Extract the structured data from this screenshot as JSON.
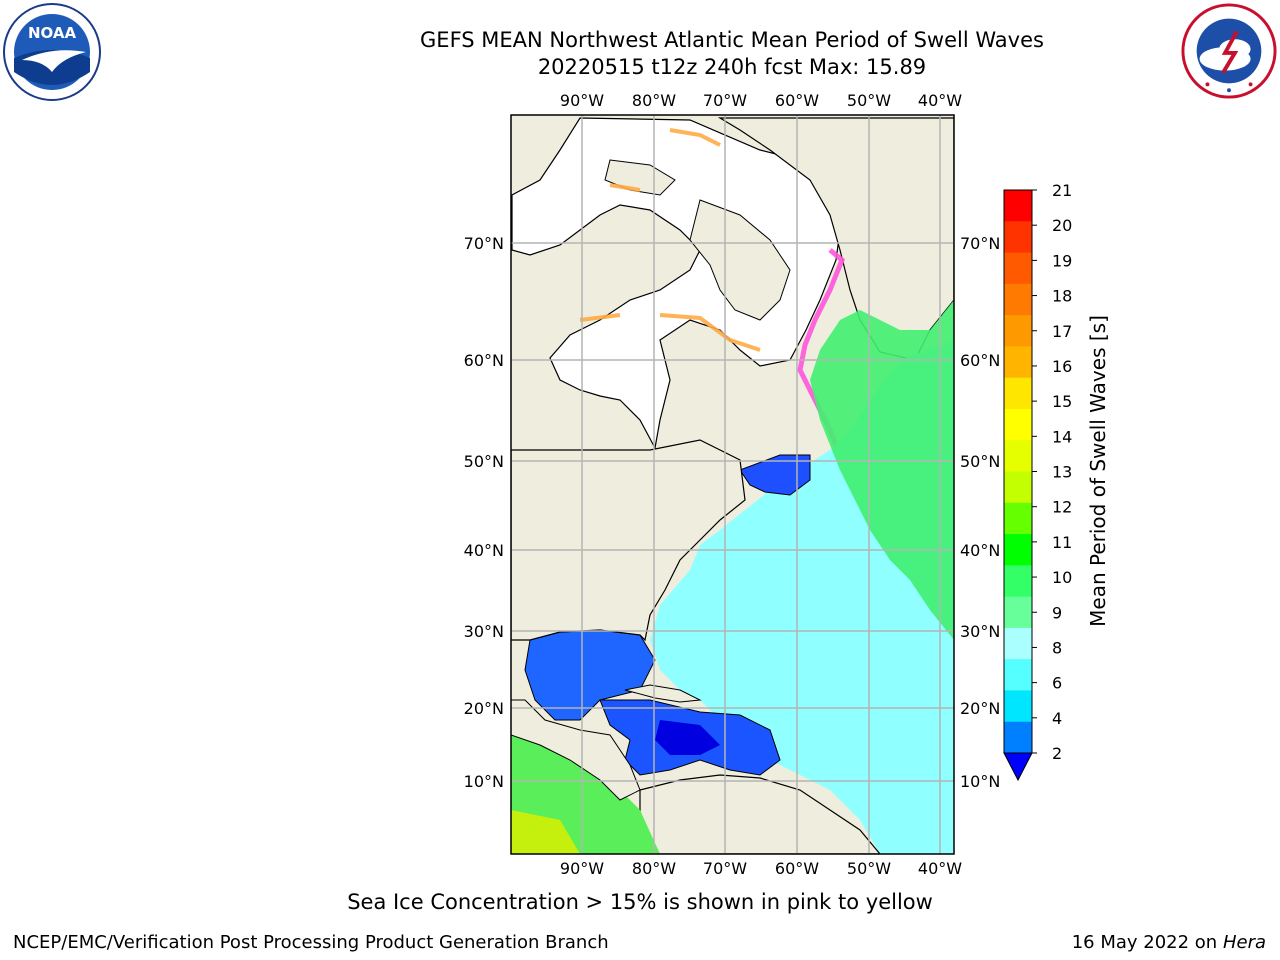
{
  "header": {
    "title_line1": "GEFS MEAN Northwest Atlantic Mean Period of Swell Waves",
    "title_line2": "20220515 t12z 240h fcst   Max: 15.89"
  },
  "logos": {
    "left": "NOAA",
    "left_ring_text": "NATIONAL OCEANIC AND ATMOSPHERIC ADMINISTRATION · U.S. DEPARTMENT OF COMMERCE",
    "right_ring_text": "NATIONAL WEATHER SERVICE"
  },
  "map": {
    "lon_labels": [
      "90°W",
      "80°W",
      "70°W",
      "60°W",
      "50°W",
      "40°W"
    ],
    "lat_labels": [
      "70°N",
      "60°N",
      "50°N",
      "40°N",
      "30°N",
      "20°N",
      "10°N"
    ],
    "colors": {
      "land": "#efedde",
      "ice_background": "#ffffff",
      "grid": "#b4b4b4",
      "coast": "#000000"
    }
  },
  "colorbar": {
    "label": "Mean Period of Swell Waves [s]",
    "ticks": [
      "21",
      "20",
      "19",
      "18",
      "17",
      "16",
      "15",
      "14",
      "13",
      "12",
      "11",
      "10",
      "9",
      "8",
      "6",
      "4",
      "2"
    ],
    "colors_top_to_bottom": [
      "#ff0000",
      "#ff3300",
      "#ff5a00",
      "#ff7a00",
      "#ff9900",
      "#ffb400",
      "#ffe600",
      "#ffff00",
      "#e6ff00",
      "#c3ff00",
      "#66ff00",
      "#00ff00",
      "#33ff66",
      "#66ff99",
      "#aaffff",
      "#55ffff",
      "#00e6ff",
      "#0080ff"
    ],
    "extend_color": "#0000ff"
  },
  "footer": {
    "note": "Sea Ice Concentration > 15% is shown in pink to yellow",
    "left": "NCEP/EMC/Verification Post Processing Product Generation Branch",
    "right_date": "16 May 2022 on",
    "right_host": "Hera"
  }
}
